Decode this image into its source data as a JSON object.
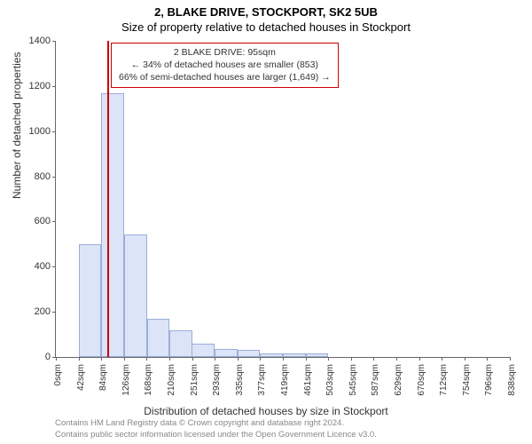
{
  "title1": "2, BLAKE DRIVE, STOCKPORT, SK2 5UB",
  "title2": "Size of property relative to detached houses in Stockport",
  "chart": {
    "type": "histogram",
    "ylabel": "Number of detached properties",
    "xlabel": "Distribution of detached houses by size in Stockport",
    "ylim": [
      0,
      1400
    ],
    "ytick_step": 200,
    "yticks": [
      0,
      200,
      400,
      600,
      800,
      1000,
      1200,
      1400
    ],
    "xtick_step": 42,
    "xticks_sqm": [
      0,
      42,
      84,
      126,
      168,
      210,
      251,
      293,
      335,
      377,
      419,
      461,
      503,
      545,
      587,
      629,
      670,
      712,
      754,
      796,
      838
    ],
    "bar_fill": "#dce4f7",
    "bar_stroke": "#9aaed8",
    "marker_color": "#cc0000",
    "marker_sqm": 95,
    "background_color": "#ffffff",
    "axis_color": "#666666",
    "bars": [
      {
        "x_sqm": 42,
        "value": 500
      },
      {
        "x_sqm": 84,
        "value": 1168
      },
      {
        "x_sqm": 126,
        "value": 542
      },
      {
        "x_sqm": 168,
        "value": 170
      },
      {
        "x_sqm": 210,
        "value": 120
      },
      {
        "x_sqm": 251,
        "value": 60
      },
      {
        "x_sqm": 293,
        "value": 35
      },
      {
        "x_sqm": 335,
        "value": 30
      },
      {
        "x_sqm": 377,
        "value": 15
      },
      {
        "x_sqm": 419,
        "value": 15
      },
      {
        "x_sqm": 461,
        "value": 15
      }
    ],
    "info_box": {
      "line1": "2 BLAKE DRIVE: 95sqm",
      "line2": "← 34% of detached houses are smaller (853)",
      "line3": "66% of semi-detached houses are larger (1,649) →"
    }
  },
  "footer": {
    "line1": "Contains HM Land Registry data © Crown copyright and database right 2024.",
    "line2": "Contains public sector information licensed under the Open Government Licence v3.0."
  }
}
